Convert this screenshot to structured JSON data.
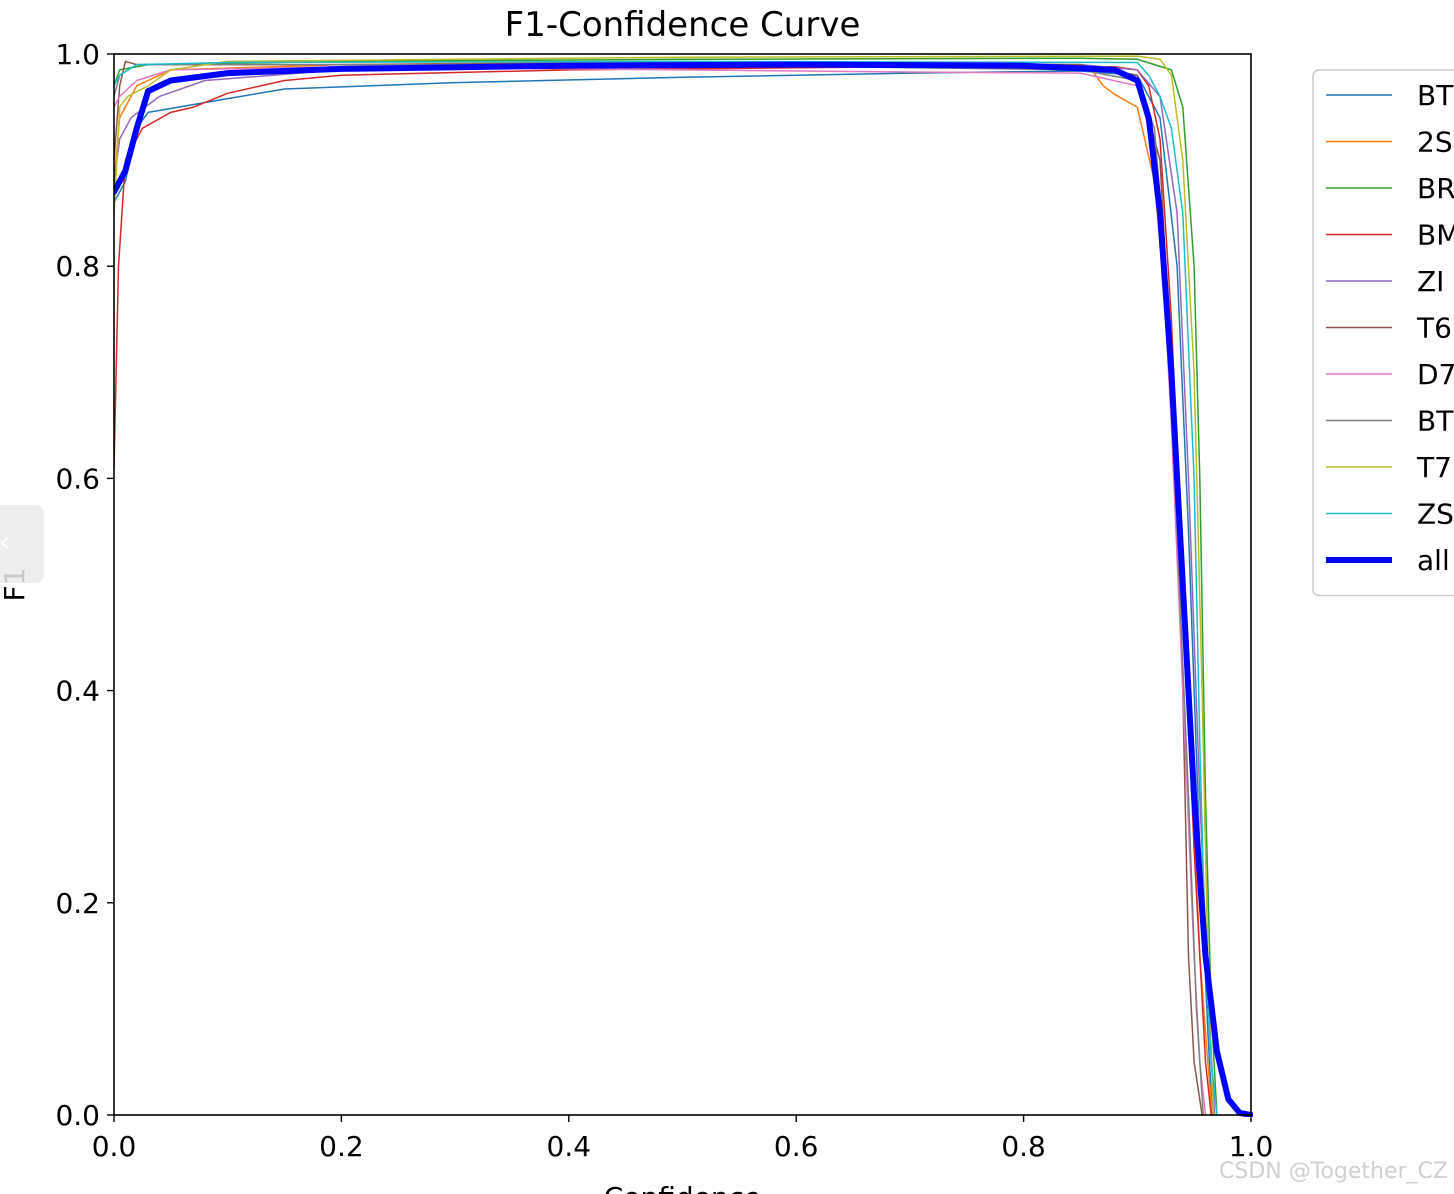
{
  "chart_data": {
    "type": "line",
    "title": "F1-Confidence Curve",
    "xlabel": "Confidence",
    "ylabel": "F1",
    "xlim": [
      0,
      1
    ],
    "ylim": [
      0,
      1
    ],
    "xticks": [
      "0.0",
      "0.2",
      "0.4",
      "0.6",
      "0.8",
      "1.0"
    ],
    "yticks": [
      "0.0",
      "0.2",
      "0.4",
      "0.6",
      "0.8",
      "1.0"
    ],
    "grid": false,
    "legend_position": "outside-right",
    "series": [
      {
        "name": "BT",
        "color": "#1f77b4",
        "width": 1.5,
        "points": [
          [
            0.0,
            0.86
          ],
          [
            0.01,
            0.88
          ],
          [
            0.02,
            0.93
          ],
          [
            0.03,
            0.945
          ],
          [
            0.1,
            0.958
          ],
          [
            0.15,
            0.967
          ],
          [
            0.3,
            0.973
          ],
          [
            0.5,
            0.978
          ],
          [
            0.7,
            0.982
          ],
          [
            0.85,
            0.984
          ],
          [
            0.9,
            0.98
          ],
          [
            0.92,
            0.94
          ],
          [
            0.935,
            0.8
          ],
          [
            0.945,
            0.55
          ],
          [
            0.955,
            0.25
          ],
          [
            0.962,
            0.08
          ],
          [
            0.966,
            0.0
          ]
        ]
      },
      {
        "name": "2S",
        "color": "#ff7f0e",
        "width": 1.5,
        "points": [
          [
            0.0,
            0.88
          ],
          [
            0.005,
            0.94
          ],
          [
            0.02,
            0.97
          ],
          [
            0.05,
            0.985
          ],
          [
            0.2,
            0.99
          ],
          [
            0.5,
            0.993
          ],
          [
            0.8,
            0.99
          ],
          [
            0.86,
            0.985
          ],
          [
            0.87,
            0.97
          ],
          [
            0.88,
            0.962
          ],
          [
            0.9,
            0.95
          ],
          [
            0.915,
            0.88
          ],
          [
            0.93,
            0.7
          ],
          [
            0.945,
            0.4
          ],
          [
            0.955,
            0.15
          ],
          [
            0.962,
            0.05
          ],
          [
            0.966,
            0.0
          ]
        ]
      },
      {
        "name": "BR",
        "color": "#2ca02c",
        "width": 1.5,
        "points": [
          [
            0.0,
            0.97
          ],
          [
            0.005,
            0.985
          ],
          [
            0.03,
            0.99
          ],
          [
            0.2,
            0.993
          ],
          [
            0.5,
            0.995
          ],
          [
            0.85,
            0.996
          ],
          [
            0.9,
            0.995
          ],
          [
            0.915,
            0.99
          ],
          [
            0.93,
            0.985
          ],
          [
            0.94,
            0.95
          ],
          [
            0.95,
            0.8
          ],
          [
            0.955,
            0.6
          ],
          [
            0.96,
            0.3
          ],
          [
            0.965,
            0.1
          ],
          [
            0.97,
            0.0
          ]
        ]
      },
      {
        "name": "BM",
        "color": "#d62728",
        "width": 1.5,
        "points": [
          [
            0.0,
            0.61
          ],
          [
            0.004,
            0.8
          ],
          [
            0.01,
            0.9
          ],
          [
            0.025,
            0.93
          ],
          [
            0.05,
            0.945
          ],
          [
            0.07,
            0.95
          ],
          [
            0.1,
            0.963
          ],
          [
            0.15,
            0.975
          ],
          [
            0.2,
            0.98
          ],
          [
            0.4,
            0.985
          ],
          [
            0.7,
            0.988
          ],
          [
            0.88,
            0.988
          ],
          [
            0.9,
            0.985
          ],
          [
            0.91,
            0.97
          ],
          [
            0.92,
            0.92
          ],
          [
            0.93,
            0.75
          ],
          [
            0.94,
            0.5
          ],
          [
            0.95,
            0.25
          ],
          [
            0.96,
            0.05
          ],
          [
            0.965,
            0.0
          ]
        ]
      },
      {
        "name": "ZI",
        "color": "#9467bd",
        "width": 1.5,
        "points": [
          [
            0.0,
            0.88
          ],
          [
            0.005,
            0.92
          ],
          [
            0.015,
            0.94
          ],
          [
            0.04,
            0.96
          ],
          [
            0.08,
            0.975
          ],
          [
            0.2,
            0.985
          ],
          [
            0.5,
            0.99
          ],
          [
            0.85,
            0.99
          ],
          [
            0.9,
            0.985
          ],
          [
            0.92,
            0.96
          ],
          [
            0.935,
            0.85
          ],
          [
            0.945,
            0.6
          ],
          [
            0.955,
            0.3
          ],
          [
            0.963,
            0.1
          ],
          [
            0.968,
            0.0
          ]
        ]
      },
      {
        "name": "T6",
        "color": "#8c564b",
        "width": 1.5,
        "points": [
          [
            0.0,
            0.9
          ],
          [
            0.005,
            0.97
          ],
          [
            0.01,
            0.993
          ],
          [
            0.02,
            0.99
          ],
          [
            0.2,
            0.99
          ],
          [
            0.5,
            0.992
          ],
          [
            0.85,
            0.99
          ],
          [
            0.9,
            0.98
          ],
          [
            0.92,
            0.9
          ],
          [
            0.93,
            0.7
          ],
          [
            0.94,
            0.4
          ],
          [
            0.945,
            0.15
          ],
          [
            0.95,
            0.05
          ],
          [
            0.957,
            0.0
          ]
        ]
      },
      {
        "name": "D7",
        "color": "#e377c2",
        "width": 1.5,
        "points": [
          [
            0.0,
            0.95
          ],
          [
            0.005,
            0.96
          ],
          [
            0.02,
            0.975
          ],
          [
            0.05,
            0.985
          ],
          [
            0.2,
            0.988
          ],
          [
            0.5,
            0.985
          ],
          [
            0.7,
            0.983
          ],
          [
            0.85,
            0.982
          ],
          [
            0.9,
            0.97
          ],
          [
            0.91,
            0.93
          ],
          [
            0.92,
            0.85
          ],
          [
            0.93,
            0.65
          ],
          [
            0.94,
            0.4
          ],
          [
            0.95,
            0.15
          ],
          [
            0.955,
            0.05
          ],
          [
            0.96,
            0.0
          ]
        ]
      },
      {
        "name": "BT",
        "color": "#7f7f7f",
        "width": 1.5,
        "points": [
          [
            0.0,
            0.96
          ],
          [
            0.005,
            0.98
          ],
          [
            0.02,
            0.99
          ],
          [
            0.1,
            0.99
          ],
          [
            0.5,
            0.99
          ],
          [
            0.85,
            0.985
          ],
          [
            0.9,
            0.975
          ],
          [
            0.915,
            0.93
          ],
          [
            0.925,
            0.8
          ],
          [
            0.935,
            0.55
          ],
          [
            0.945,
            0.3
          ],
          [
            0.952,
            0.1
          ],
          [
            0.958,
            0.0
          ]
        ]
      },
      {
        "name": "T7",
        "color": "#bcbd22",
        "width": 1.5,
        "points": [
          [
            0.0,
            0.85
          ],
          [
            0.005,
            0.95
          ],
          [
            0.012,
            0.96
          ],
          [
            0.03,
            0.97
          ],
          [
            0.05,
            0.985
          ],
          [
            0.1,
            0.993
          ],
          [
            0.5,
            0.997
          ],
          [
            0.9,
            0.998
          ],
          [
            0.92,
            0.995
          ],
          [
            0.93,
            0.98
          ],
          [
            0.94,
            0.9
          ],
          [
            0.95,
            0.7
          ],
          [
            0.957,
            0.4
          ],
          [
            0.962,
            0.15
          ],
          [
            0.967,
            0.0
          ]
        ]
      },
      {
        "name": "ZS",
        "color": "#17becf",
        "width": 1.5,
        "points": [
          [
            0.0,
            0.97
          ],
          [
            0.005,
            0.98
          ],
          [
            0.02,
            0.99
          ],
          [
            0.1,
            0.992
          ],
          [
            0.5,
            0.993
          ],
          [
            0.9,
            0.992
          ],
          [
            0.91,
            0.98
          ],
          [
            0.92,
            0.96
          ],
          [
            0.93,
            0.93
          ],
          [
            0.94,
            0.85
          ],
          [
            0.95,
            0.6
          ],
          [
            0.955,
            0.35
          ],
          [
            0.96,
            0.15
          ],
          [
            0.965,
            0.05
          ],
          [
            0.97,
            0.0
          ]
        ]
      },
      {
        "name": "all",
        "color": "#0000ff",
        "width": 6,
        "points": [
          [
            0.0,
            0.87
          ],
          [
            0.01,
            0.89
          ],
          [
            0.02,
            0.93
          ],
          [
            0.03,
            0.965
          ],
          [
            0.05,
            0.975
          ],
          [
            0.1,
            0.982
          ],
          [
            0.2,
            0.986
          ],
          [
            0.4,
            0.989
          ],
          [
            0.6,
            0.99
          ],
          [
            0.8,
            0.989
          ],
          [
            0.88,
            0.985
          ],
          [
            0.9,
            0.975
          ],
          [
            0.91,
            0.94
          ],
          [
            0.92,
            0.85
          ],
          [
            0.93,
            0.7
          ],
          [
            0.94,
            0.5
          ],
          [
            0.95,
            0.3
          ],
          [
            0.96,
            0.15
          ],
          [
            0.97,
            0.06
          ],
          [
            0.98,
            0.015
          ],
          [
            0.99,
            0.002
          ],
          [
            1.0,
            0.0
          ]
        ]
      }
    ]
  },
  "ui": {
    "nav_arrow_glyph": "‹",
    "watermark": "CSDN @Together_CZ"
  }
}
